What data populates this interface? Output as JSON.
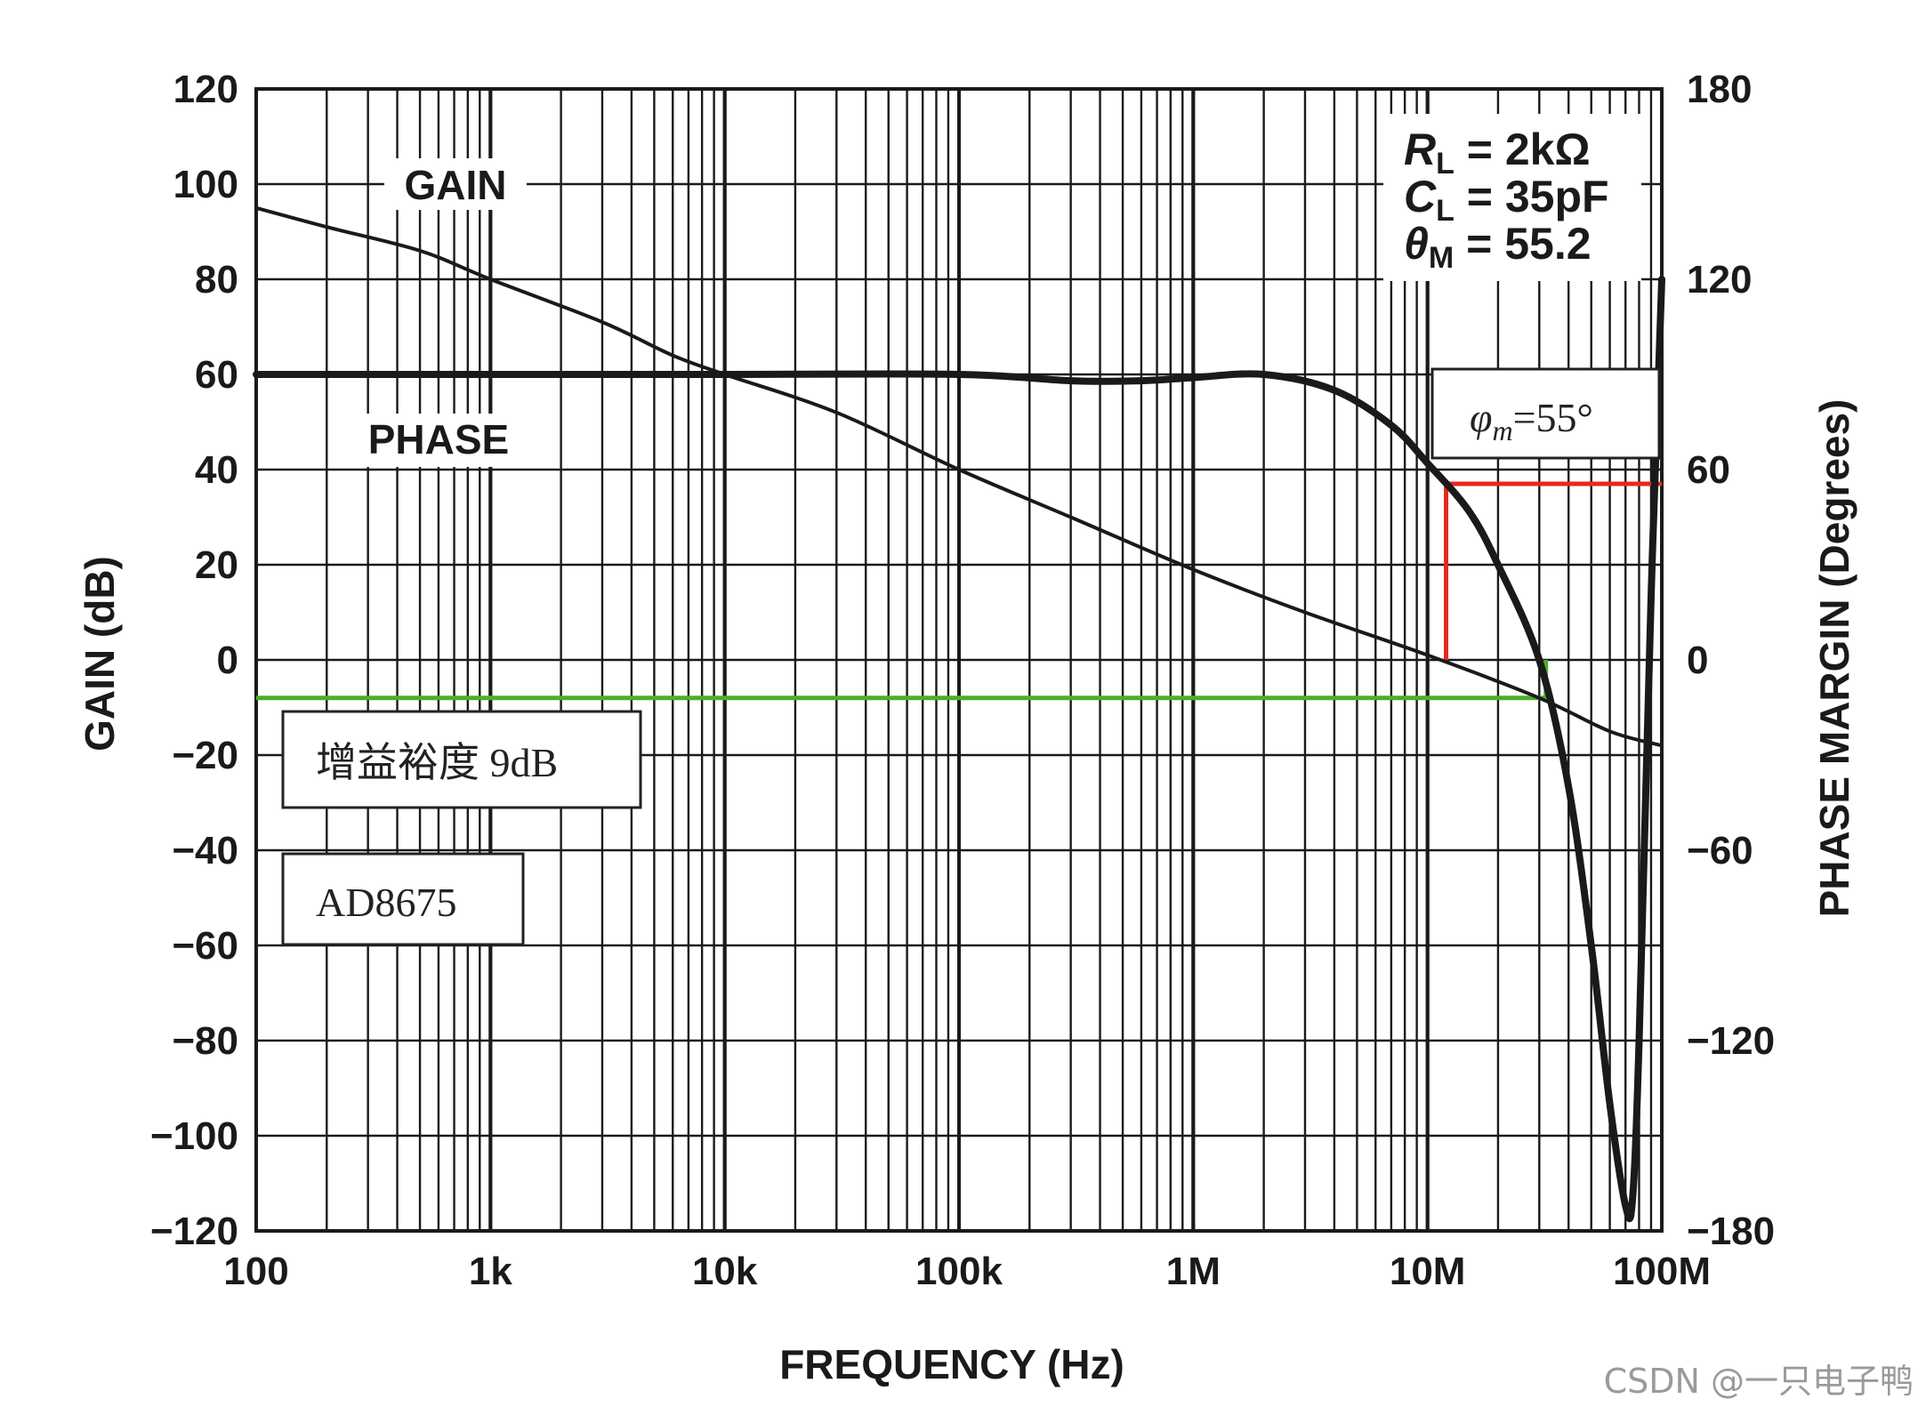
{
  "chart_data": {
    "type": "line",
    "xlabel": "FREQUENCY (Hz)",
    "ylabel": "GAIN (dB)",
    "y2label": "PHASE MARGIN (Degrees)",
    "xscale": "log",
    "xlim": [
      100,
      100000000
    ],
    "ylim": [
      -120,
      120
    ],
    "y2lim": [
      -180,
      180
    ],
    "grid": true,
    "x_ticks": [
      {
        "value": 100,
        "label": "100"
      },
      {
        "value": 1000,
        "label": "1k"
      },
      {
        "value": 10000,
        "label": "10k"
      },
      {
        "value": 100000,
        "label": "100k"
      },
      {
        "value": 1000000,
        "label": "1M"
      },
      {
        "value": 10000000,
        "label": "10M"
      },
      {
        "value": 100000000,
        "label": "100M"
      }
    ],
    "y_ticks": [
      120,
      100,
      80,
      60,
      40,
      20,
      0,
      -20,
      -40,
      -60,
      -80,
      -100,
      -120
    ],
    "y2_ticks": [
      180,
      120,
      60,
      0,
      -60,
      -120,
      -180
    ],
    "series": [
      {
        "name": "GAIN",
        "axis": "left",
        "x": [
          100,
          200,
          500,
          1000,
          3000,
          6000,
          10000,
          30000,
          100000,
          300000,
          1000000,
          3000000,
          10000000,
          30000000,
          60000000,
          100000000
        ],
        "y": [
          95,
          91,
          86,
          80,
          71,
          64,
          60,
          52,
          40,
          30,
          19,
          10,
          1,
          -8,
          -15,
          -18
        ]
      },
      {
        "name": "PHASE",
        "axis": "right",
        "x": [
          100,
          1000,
          10000,
          100000,
          300000,
          600000,
          1000000,
          2000000,
          4000000,
          7000000,
          10000000,
          15000000,
          20000000,
          30000000,
          40000000,
          50000000,
          60000000,
          70000000,
          75000000,
          80000000,
          90000000,
          100000000
        ],
        "y": [
          90,
          90,
          90,
          90,
          88,
          88,
          89,
          90,
          85,
          74,
          62,
          47,
          30,
          0,
          -40,
          -90,
          -140,
          -172,
          -170,
          -120,
          20,
          120
        ]
      }
    ],
    "annotations": {
      "gain_label": "GAIN",
      "phase_label": "PHASE",
      "conditions": [
        {
          "sym": "R",
          "sub": "L",
          "rest": " = 2kΩ"
        },
        {
          "sym": "C",
          "sub": "L",
          "rest": " = 35pF"
        },
        {
          "sym": "θ",
          "sub": "M",
          "rest": " = 55.2"
        }
      ],
      "phase_margin_box": {
        "sym": "φ",
        "sub": "m",
        "rest": "=55°"
      },
      "gain_margin_box": "增益裕度 9dB",
      "part_box": "AD8675",
      "red_marker": {
        "x": 12000000,
        "gain_from": 0,
        "gain_to": 37
      },
      "green_marker": {
        "x": 32000000,
        "gain_from": 0,
        "gain_to": -8
      },
      "colors": {
        "red": "#e8281e",
        "green": "#4caf2a",
        "curve": "#1a1a1a",
        "grid": "#1a1a1a"
      }
    }
  },
  "watermark": "CSDN @一只电子鸭"
}
